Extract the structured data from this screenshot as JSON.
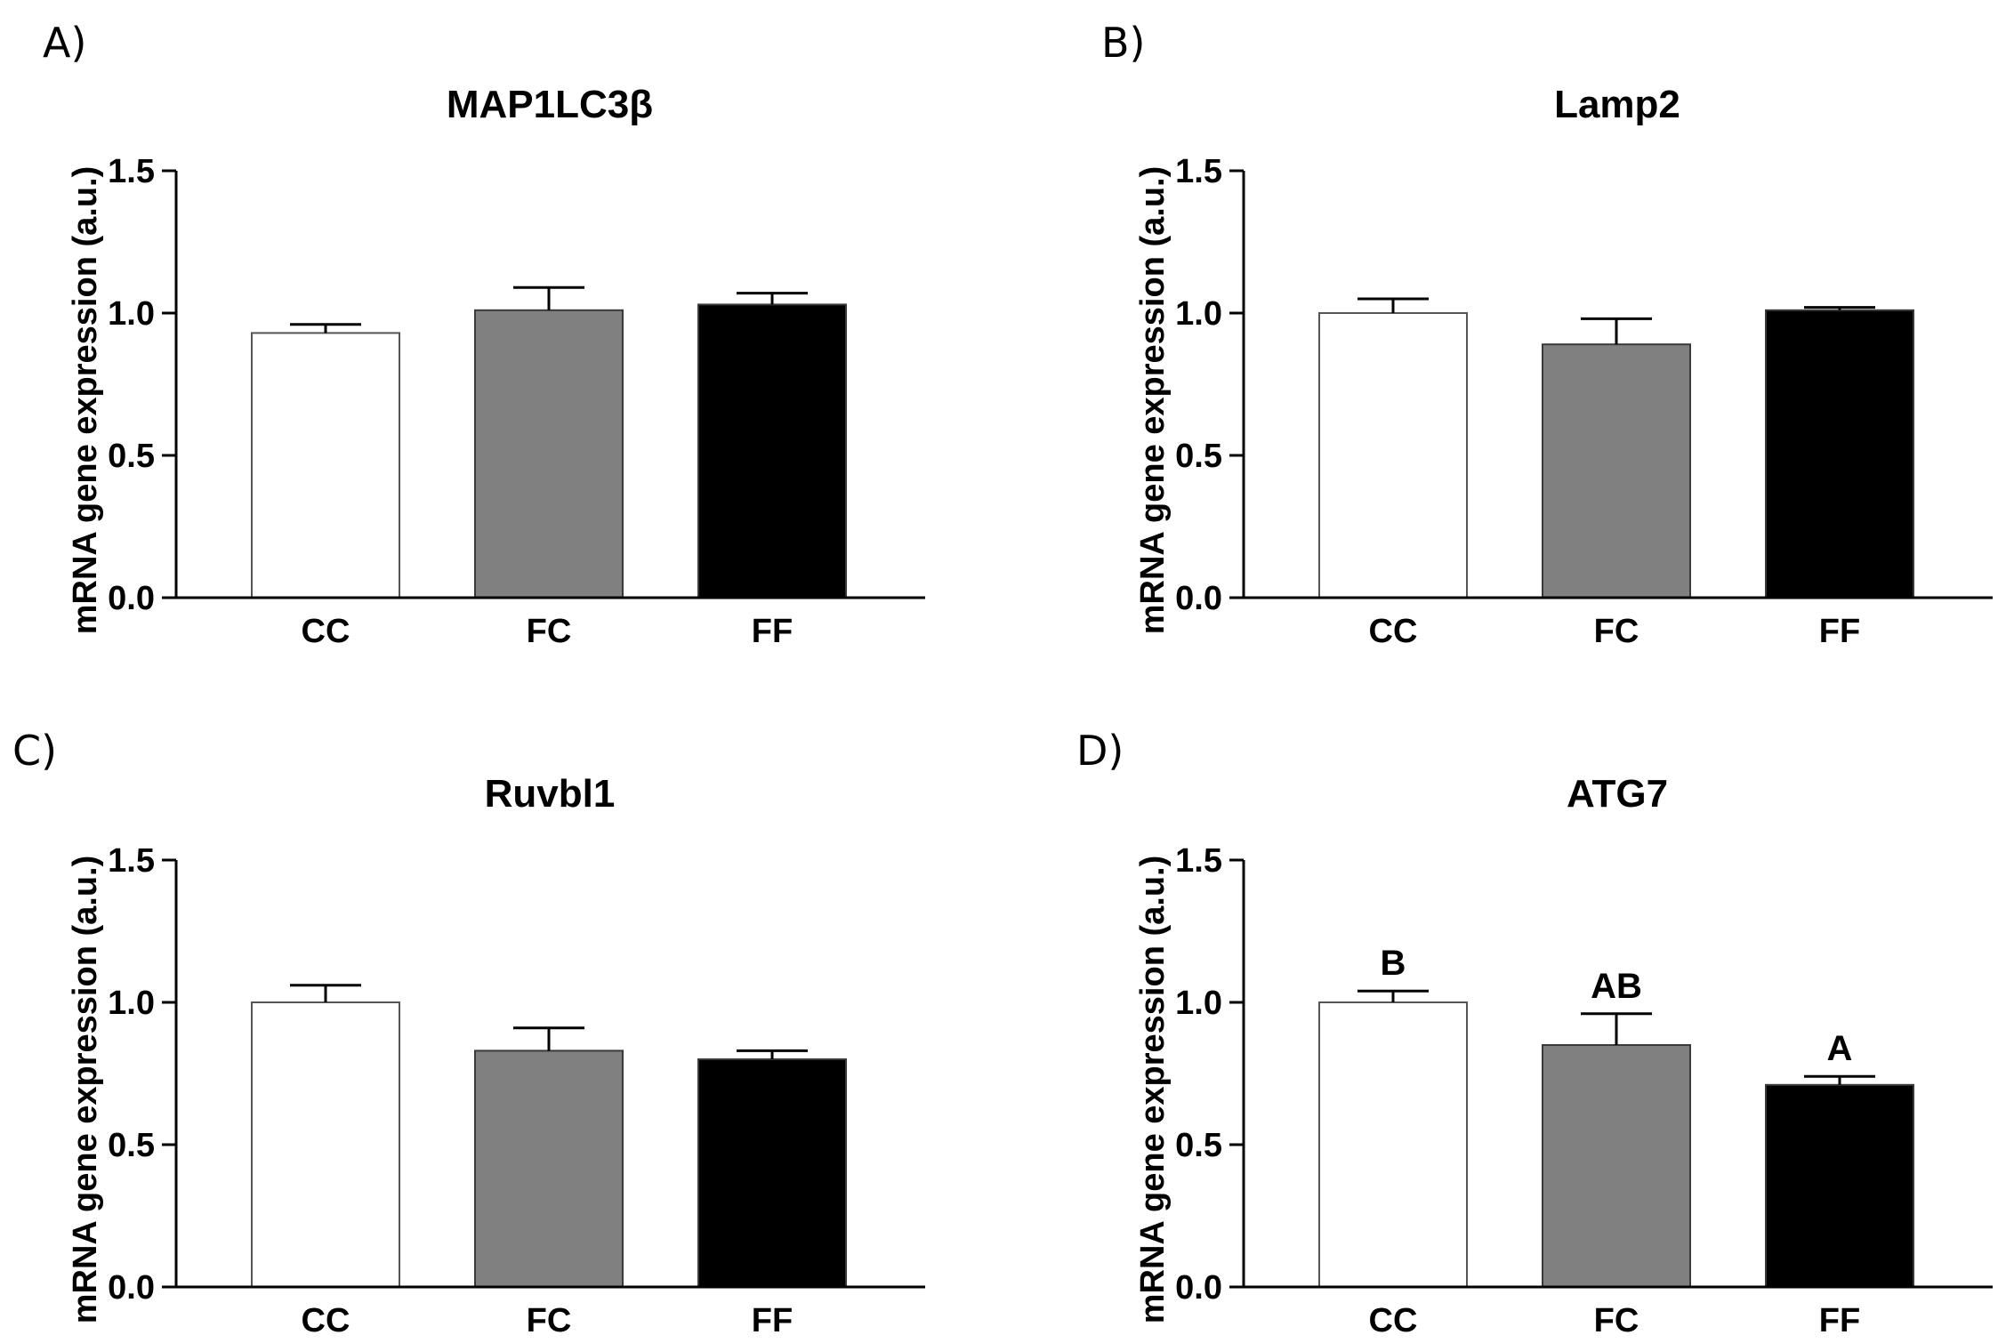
{
  "chart_data": [
    {
      "type": "bar",
      "panel_label": "A)",
      "title": "MAP1LC3β",
      "ylabel": "mRNA gene expression (a.u.)",
      "xlabel": "",
      "categories": [
        "CC",
        "FC",
        "FF"
      ],
      "values": [
        0.93,
        1.01,
        1.03
      ],
      "errors": [
        0.03,
        0.08,
        0.04
      ],
      "annotations": [
        "",
        "",
        ""
      ],
      "bar_colors": [
        "#ffffff",
        "#808080",
        "#000000"
      ],
      "ylim": [
        0,
        1.5
      ],
      "yticks": [
        "0.0",
        "0.5",
        "1.0",
        "1.5"
      ],
      "grid": false
    },
    {
      "type": "bar",
      "panel_label": "B)",
      "title": "Lamp2",
      "ylabel": "mRNA gene expression (a.u.)",
      "xlabel": "",
      "categories": [
        "CC",
        "FC",
        "FF"
      ],
      "values": [
        1.0,
        0.89,
        1.01
      ],
      "errors": [
        0.05,
        0.09,
        0.01
      ],
      "annotations": [
        "",
        "",
        ""
      ],
      "bar_colors": [
        "#ffffff",
        "#808080",
        "#000000"
      ],
      "ylim": [
        0,
        1.5
      ],
      "yticks": [
        "0.0",
        "0.5",
        "1.0",
        "1.5"
      ],
      "grid": false
    },
    {
      "type": "bar",
      "panel_label": "C)",
      "title": "Ruvbl1",
      "ylabel": "mRNA gene expression (a.u.)",
      "xlabel": "",
      "categories": [
        "CC",
        "FC",
        "FF"
      ],
      "values": [
        1.0,
        0.83,
        0.8
      ],
      "errors": [
        0.06,
        0.08,
        0.03
      ],
      "annotations": [
        "",
        "",
        ""
      ],
      "bar_colors": [
        "#ffffff",
        "#808080",
        "#000000"
      ],
      "ylim": [
        0,
        1.5
      ],
      "yticks": [
        "0.0",
        "0.5",
        "1.0",
        "1.5"
      ],
      "grid": false
    },
    {
      "type": "bar",
      "panel_label": "D)",
      "title": "ATG7",
      "ylabel": "mRNA gene expression (a.u.)",
      "xlabel": "",
      "categories": [
        "CC",
        "FC",
        "FF"
      ],
      "values": [
        1.0,
        0.85,
        0.71
      ],
      "errors": [
        0.04,
        0.11,
        0.03
      ],
      "annotations": [
        "B",
        "AB",
        "A"
      ],
      "bar_colors": [
        "#ffffff",
        "#808080",
        "#000000"
      ],
      "ylim": [
        0,
        1.5
      ],
      "yticks": [
        "0.0",
        "0.5",
        "1.0",
        "1.5"
      ],
      "grid": false
    }
  ]
}
